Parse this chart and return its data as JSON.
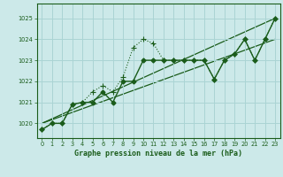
{
  "title": "Graphe pression niveau de la mer (hPa)",
  "bg_color": "#cce9e9",
  "grid_color": "#aad4d4",
  "line_color": "#1a5c1a",
  "xlim": [
    -0.5,
    23.5
  ],
  "ylim": [
    1019.3,
    1025.7
  ],
  "yticks": [
    1020,
    1021,
    1022,
    1023,
    1024,
    1025
  ],
  "xticks": [
    0,
    1,
    2,
    3,
    4,
    5,
    6,
    7,
    8,
    9,
    10,
    11,
    12,
    13,
    14,
    15,
    16,
    17,
    18,
    19,
    20,
    21,
    22,
    23
  ],
  "series_dotted": {
    "x": [
      0,
      1,
      2,
      3,
      4,
      5,
      6,
      7,
      8,
      9,
      10,
      11,
      12,
      13,
      14,
      15,
      16,
      17,
      18,
      19,
      20,
      21,
      22,
      23
    ],
    "y": [
      1019.7,
      1020.0,
      1020.0,
      1020.9,
      1021.0,
      1021.5,
      1021.8,
      1021.5,
      1022.2,
      1023.6,
      1024.0,
      1023.8,
      1023.0,
      1023.0,
      1023.0,
      1023.0,
      1023.0,
      1022.1,
      1023.0,
      1023.3,
      1024.0,
      1023.0,
      1024.0,
      1025.0
    ]
  },
  "series_solid": {
    "x": [
      0,
      1,
      2,
      3,
      4,
      5,
      6,
      7,
      8,
      9,
      10,
      11,
      12,
      13,
      14,
      15,
      16,
      17,
      18,
      19,
      20,
      21,
      22,
      23
    ],
    "y": [
      1019.7,
      1020.0,
      1020.0,
      1020.9,
      1021.0,
      1021.0,
      1021.5,
      1021.0,
      1022.0,
      1022.0,
      1023.0,
      1023.0,
      1023.0,
      1023.0,
      1023.0,
      1023.0,
      1023.0,
      1022.1,
      1023.0,
      1023.3,
      1024.0,
      1023.0,
      1024.0,
      1025.0
    ]
  },
  "ref_line1": {
    "x": [
      0,
      23
    ],
    "y": [
      1020.0,
      1025.0
    ]
  },
  "ref_line2": {
    "x": [
      0,
      23
    ],
    "y": [
      1020.0,
      1024.0
    ]
  }
}
